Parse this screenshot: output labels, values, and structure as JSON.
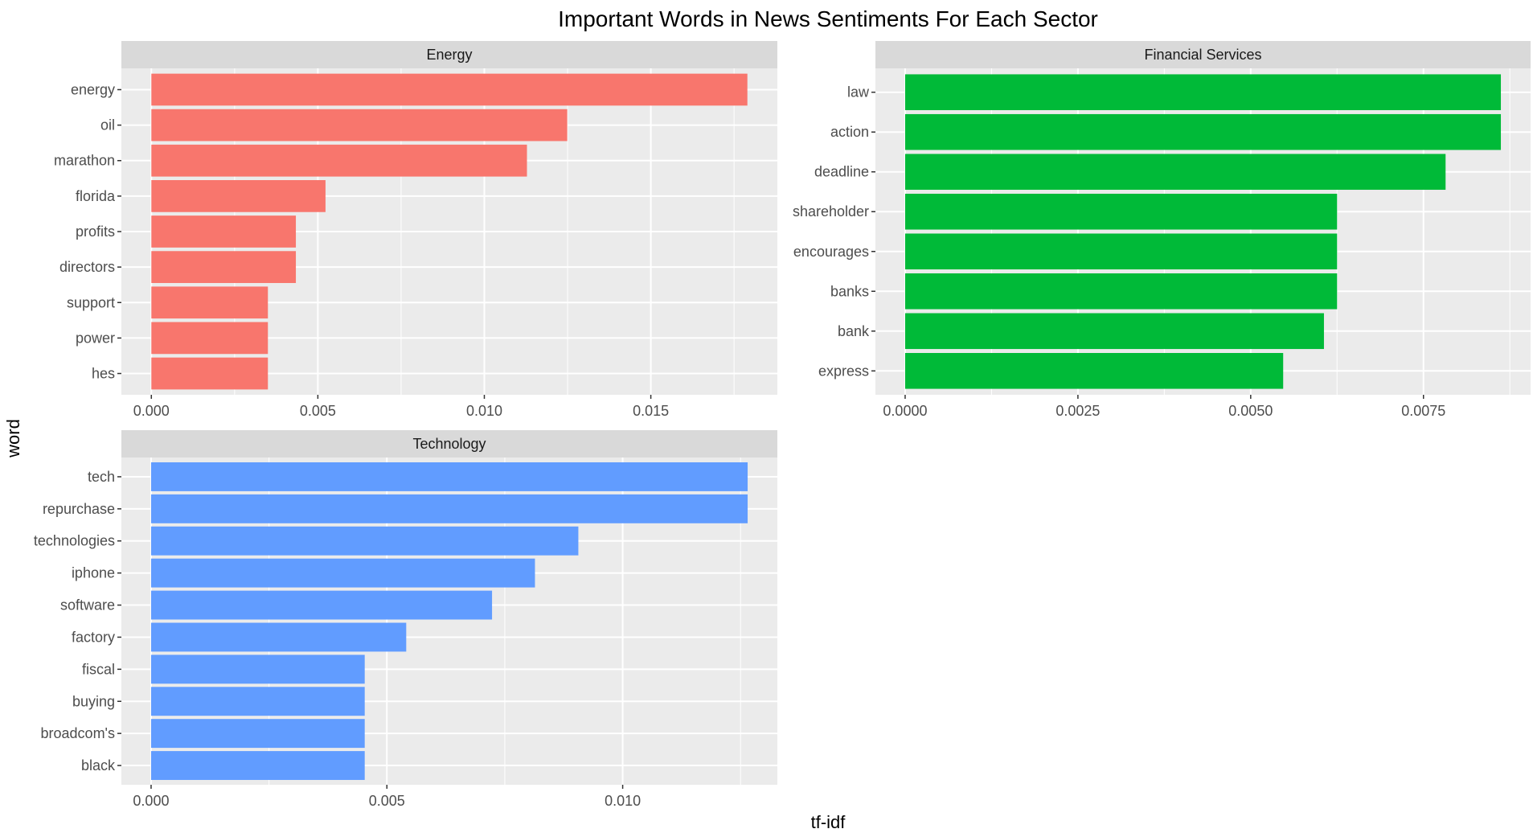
{
  "chart_data": {
    "type": "bar",
    "orientation": "horizontal",
    "title": "Important Words in News Sentiments For Each Sector",
    "xlabel": "tf-idf",
    "ylabel": "word",
    "grid": true,
    "legend": "none",
    "facets": [
      {
        "label": "Energy",
        "color": "#F8766D",
        "categories": [
          "energy",
          "oil",
          "marathon",
          "florida",
          "profits",
          "directors",
          "support",
          "power",
          "hes"
        ],
        "values": [
          0.0179,
          0.01249,
          0.01128,
          0.00523,
          0.00434,
          0.00434,
          0.0035,
          0.0035,
          0.0035
        ],
        "xlim": [
          -0.0009,
          0.0188
        ],
        "xticks": [
          0.0,
          0.005,
          0.01,
          0.015
        ],
        "xtick_labels": [
          "0.000",
          "0.005",
          "0.010",
          "0.015"
        ]
      },
      {
        "label": "Financial Services",
        "color": "#00BA38",
        "categories": [
          "law",
          "action",
          "deadline",
          "shareholder",
          "encourages",
          "banks",
          "bank",
          "express"
        ],
        "values": [
          0.00862,
          0.00862,
          0.00782,
          0.00625,
          0.00625,
          0.00625,
          0.00606,
          0.00547
        ],
        "xlim": [
          -0.00043,
          0.00905
        ],
        "xticks": [
          0.0,
          0.0025,
          0.005,
          0.0075
        ],
        "xtick_labels": [
          "0.0000",
          "0.0025",
          "0.0050",
          "0.0075"
        ]
      },
      {
        "label": "Technology",
        "color": "#619CFF",
        "categories": [
          "tech",
          "repurchase",
          "technologies",
          "iphone",
          "software",
          "factory",
          "fiscal",
          "buying",
          "broadcom's",
          "black"
        ],
        "values": [
          0.01265,
          0.01265,
          0.00906,
          0.00814,
          0.00723,
          0.00541,
          0.00453,
          0.00453,
          0.00453,
          0.00453
        ],
        "xlim": [
          -0.00063,
          0.01328
        ],
        "xticks": [
          0.0,
          0.005,
          0.01
        ],
        "xtick_labels": [
          "0.000",
          "0.005",
          "0.010"
        ]
      }
    ]
  }
}
